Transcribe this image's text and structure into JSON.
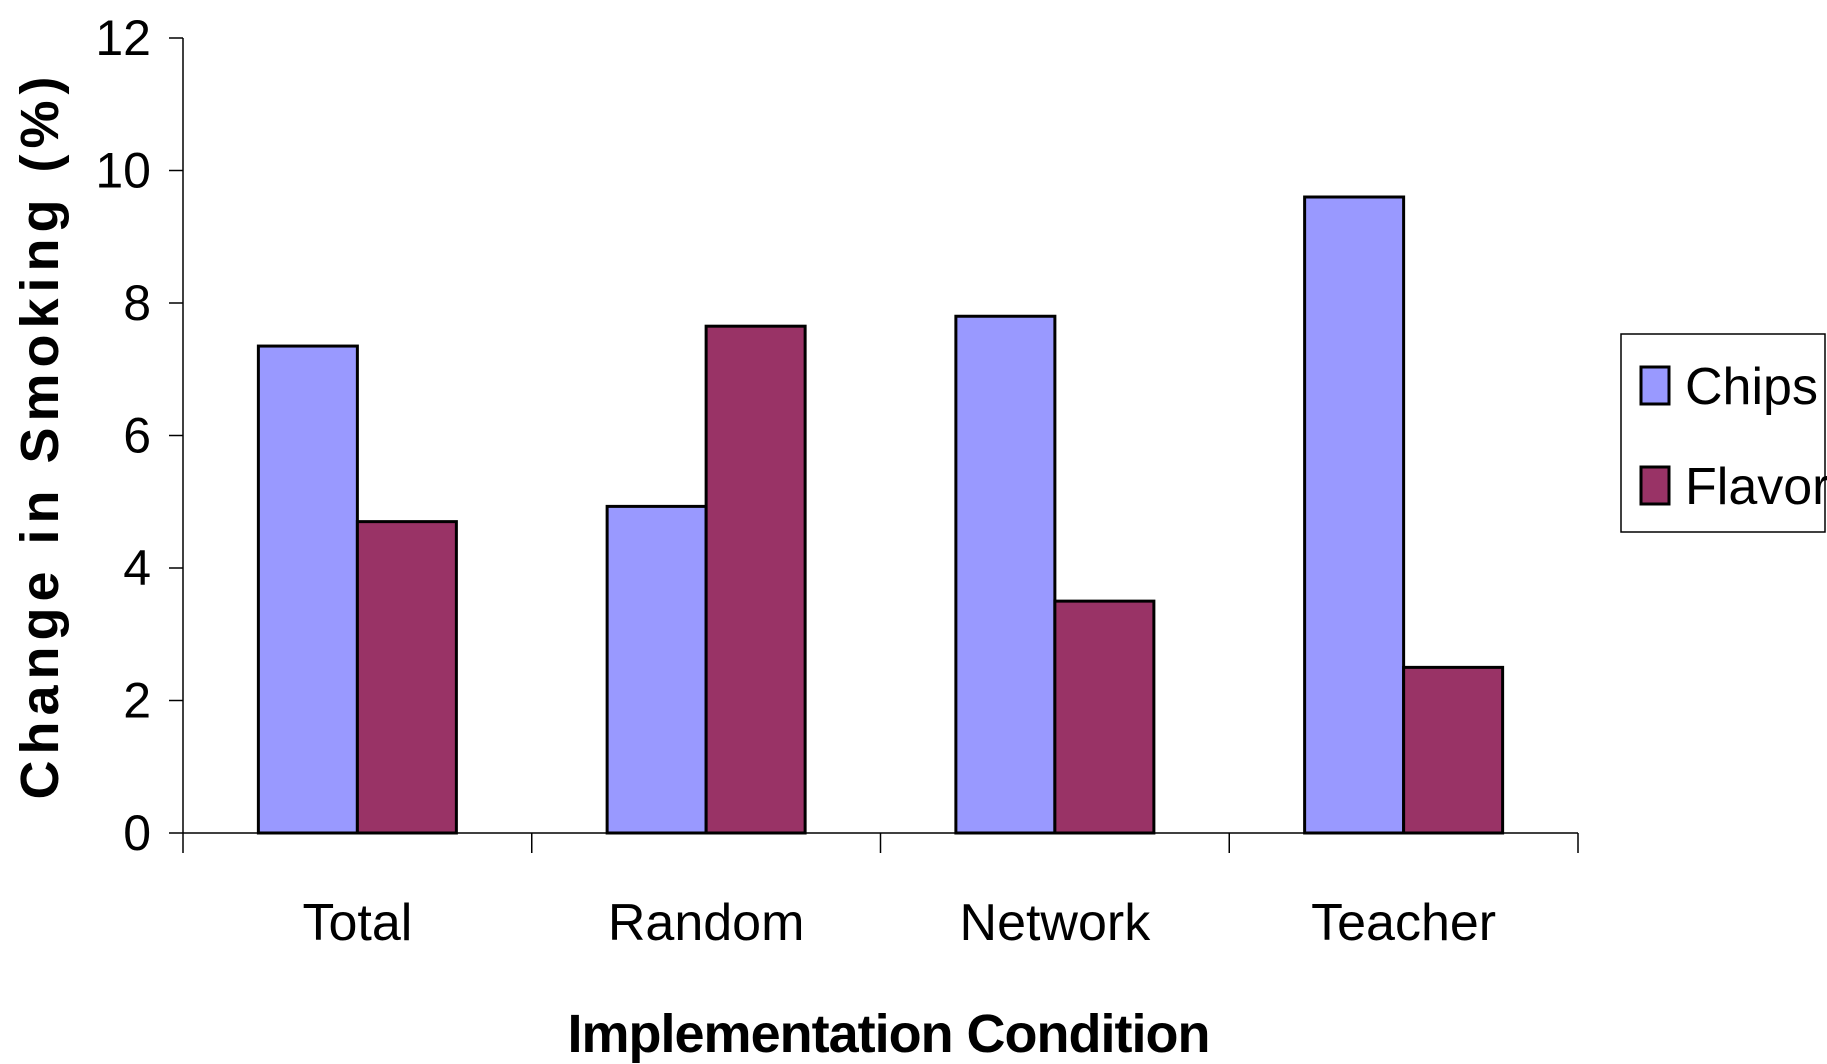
{
  "chart_data": {
    "type": "bar",
    "xlabel": "Implementation Condition",
    "ylabel": "Change in Smoking (%)",
    "categories": [
      "Total",
      "Random",
      "Network",
      "Teacher"
    ],
    "series": [
      {
        "name": "Chips",
        "values": [
          7.35,
          4.93,
          7.8,
          9.6
        ]
      },
      {
        "name": "Flavor",
        "values": [
          4.7,
          7.65,
          3.5,
          2.5
        ]
      }
    ],
    "ylim": [
      0,
      12
    ],
    "yticks": [
      0,
      2,
      4,
      6,
      8,
      10,
      12
    ],
    "grid": false,
    "legend_position": "right",
    "colors": {
      "Chips": "#9999ff",
      "Flavor": "#993366",
      "axis": "#000000"
    }
  }
}
